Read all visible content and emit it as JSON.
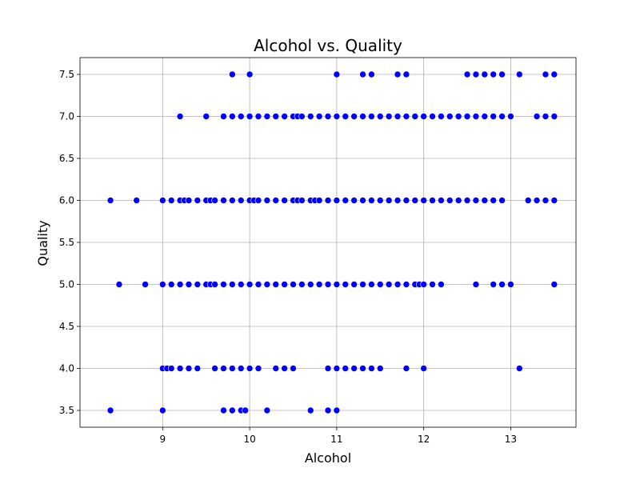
{
  "chart_data": {
    "type": "scatter",
    "title": "Alcohol vs. Quality",
    "xlabel": "Alcohol",
    "ylabel": "Quality",
    "xlim": [
      8.05,
      13.75
    ],
    "ylim": [
      3.3,
      7.7
    ],
    "xticks": [
      9,
      10,
      11,
      12,
      13
    ],
    "xtick_labels": [
      "9",
      "10",
      "11",
      "12",
      "13"
    ],
    "yticks": [
      3.5,
      4.0,
      4.5,
      5.0,
      5.5,
      6.0,
      6.5,
      7.0,
      7.5
    ],
    "ytick_labels": [
      "3.5",
      "4.0",
      "4.5",
      "5.0",
      "5.5",
      "6.0",
      "6.5",
      "7.0",
      "7.5"
    ],
    "grid": true,
    "marker_color": "#0000ff",
    "series": [
      {
        "points": [
          [
            9.8,
            7.5
          ],
          [
            10.0,
            7.5
          ],
          [
            11.0,
            7.5
          ],
          [
            11.3,
            7.5
          ],
          [
            11.4,
            7.5
          ],
          [
            11.7,
            7.5
          ],
          [
            11.8,
            7.5
          ],
          [
            12.5,
            7.5
          ],
          [
            12.6,
            7.5
          ],
          [
            12.7,
            7.5
          ],
          [
            12.8,
            7.5
          ],
          [
            12.9,
            7.5
          ],
          [
            13.1,
            7.5
          ],
          [
            13.4,
            7.5
          ],
          [
            13.5,
            7.5
          ],
          [
            9.2,
            7.0
          ],
          [
            9.5,
            7.0
          ],
          [
            9.7,
            7.0
          ],
          [
            9.8,
            7.0
          ],
          [
            9.9,
            7.0
          ],
          [
            10.0,
            7.0
          ],
          [
            10.1,
            7.0
          ],
          [
            10.2,
            7.0
          ],
          [
            10.3,
            7.0
          ],
          [
            10.4,
            7.0
          ],
          [
            10.5,
            7.0
          ],
          [
            10.55,
            7.0
          ],
          [
            10.6,
            7.0
          ],
          [
            10.7,
            7.0
          ],
          [
            10.8,
            7.0
          ],
          [
            10.9,
            7.0
          ],
          [
            11.0,
            7.0
          ],
          [
            11.1,
            7.0
          ],
          [
            11.2,
            7.0
          ],
          [
            11.3,
            7.0
          ],
          [
            11.4,
            7.0
          ],
          [
            11.5,
            7.0
          ],
          [
            11.6,
            7.0
          ],
          [
            11.7,
            7.0
          ],
          [
            11.8,
            7.0
          ],
          [
            11.9,
            7.0
          ],
          [
            12.0,
            7.0
          ],
          [
            12.1,
            7.0
          ],
          [
            12.2,
            7.0
          ],
          [
            12.3,
            7.0
          ],
          [
            12.4,
            7.0
          ],
          [
            12.5,
            7.0
          ],
          [
            12.6,
            7.0
          ],
          [
            12.7,
            7.0
          ],
          [
            12.8,
            7.0
          ],
          [
            12.9,
            7.0
          ],
          [
            13.0,
            7.0
          ],
          [
            13.3,
            7.0
          ],
          [
            13.4,
            7.0
          ],
          [
            13.5,
            7.0
          ],
          [
            8.4,
            6.0
          ],
          [
            8.7,
            6.0
          ],
          [
            9.0,
            6.0
          ],
          [
            9.1,
            6.0
          ],
          [
            9.2,
            6.0
          ],
          [
            9.25,
            6.0
          ],
          [
            9.3,
            6.0
          ],
          [
            9.4,
            6.0
          ],
          [
            9.5,
            6.0
          ],
          [
            9.55,
            6.0
          ],
          [
            9.6,
            6.0
          ],
          [
            9.7,
            6.0
          ],
          [
            9.8,
            6.0
          ],
          [
            9.9,
            6.0
          ],
          [
            10.0,
            6.0
          ],
          [
            10.05,
            6.0
          ],
          [
            10.1,
            6.0
          ],
          [
            10.2,
            6.0
          ],
          [
            10.3,
            6.0
          ],
          [
            10.4,
            6.0
          ],
          [
            10.5,
            6.0
          ],
          [
            10.55,
            6.0
          ],
          [
            10.6,
            6.0
          ],
          [
            10.7,
            6.0
          ],
          [
            10.75,
            6.0
          ],
          [
            10.8,
            6.0
          ],
          [
            10.9,
            6.0
          ],
          [
            11.0,
            6.0
          ],
          [
            11.1,
            6.0
          ],
          [
            11.2,
            6.0
          ],
          [
            11.3,
            6.0
          ],
          [
            11.4,
            6.0
          ],
          [
            11.5,
            6.0
          ],
          [
            11.6,
            6.0
          ],
          [
            11.7,
            6.0
          ],
          [
            11.8,
            6.0
          ],
          [
            11.9,
            6.0
          ],
          [
            12.0,
            6.0
          ],
          [
            12.1,
            6.0
          ],
          [
            12.2,
            6.0
          ],
          [
            12.3,
            6.0
          ],
          [
            12.4,
            6.0
          ],
          [
            12.5,
            6.0
          ],
          [
            12.6,
            6.0
          ],
          [
            12.7,
            6.0
          ],
          [
            12.8,
            6.0
          ],
          [
            12.9,
            6.0
          ],
          [
            13.2,
            6.0
          ],
          [
            13.3,
            6.0
          ],
          [
            13.4,
            6.0
          ],
          [
            13.5,
            6.0
          ],
          [
            8.5,
            5.0
          ],
          [
            8.8,
            5.0
          ],
          [
            9.0,
            5.0
          ],
          [
            9.1,
            5.0
          ],
          [
            9.2,
            5.0
          ],
          [
            9.3,
            5.0
          ],
          [
            9.4,
            5.0
          ],
          [
            9.5,
            5.0
          ],
          [
            9.55,
            5.0
          ],
          [
            9.6,
            5.0
          ],
          [
            9.7,
            5.0
          ],
          [
            9.8,
            5.0
          ],
          [
            9.9,
            5.0
          ],
          [
            10.0,
            5.0
          ],
          [
            10.1,
            5.0
          ],
          [
            10.2,
            5.0
          ],
          [
            10.3,
            5.0
          ],
          [
            10.4,
            5.0
          ],
          [
            10.5,
            5.0
          ],
          [
            10.6,
            5.0
          ],
          [
            10.7,
            5.0
          ],
          [
            10.8,
            5.0
          ],
          [
            10.9,
            5.0
          ],
          [
            11.0,
            5.0
          ],
          [
            11.1,
            5.0
          ],
          [
            11.2,
            5.0
          ],
          [
            11.3,
            5.0
          ],
          [
            11.4,
            5.0
          ],
          [
            11.5,
            5.0
          ],
          [
            11.6,
            5.0
          ],
          [
            11.7,
            5.0
          ],
          [
            11.8,
            5.0
          ],
          [
            11.9,
            5.0
          ],
          [
            11.95,
            5.0
          ],
          [
            12.0,
            5.0
          ],
          [
            12.1,
            5.0
          ],
          [
            12.2,
            5.0
          ],
          [
            12.6,
            5.0
          ],
          [
            12.8,
            5.0
          ],
          [
            12.9,
            5.0
          ],
          [
            13.0,
            5.0
          ],
          [
            13.5,
            5.0
          ],
          [
            9.0,
            4.0
          ],
          [
            9.05,
            4.0
          ],
          [
            9.1,
            4.0
          ],
          [
            9.2,
            4.0
          ],
          [
            9.3,
            4.0
          ],
          [
            9.4,
            4.0
          ],
          [
            9.6,
            4.0
          ],
          [
            9.7,
            4.0
          ],
          [
            9.8,
            4.0
          ],
          [
            9.9,
            4.0
          ],
          [
            10.0,
            4.0
          ],
          [
            10.1,
            4.0
          ],
          [
            10.3,
            4.0
          ],
          [
            10.4,
            4.0
          ],
          [
            10.5,
            4.0
          ],
          [
            10.9,
            4.0
          ],
          [
            11.0,
            4.0
          ],
          [
            11.1,
            4.0
          ],
          [
            11.2,
            4.0
          ],
          [
            11.3,
            4.0
          ],
          [
            11.4,
            4.0
          ],
          [
            11.5,
            4.0
          ],
          [
            11.8,
            4.0
          ],
          [
            12.0,
            4.0
          ],
          [
            13.1,
            4.0
          ],
          [
            8.4,
            3.5
          ],
          [
            9.0,
            3.5
          ],
          [
            9.7,
            3.5
          ],
          [
            9.8,
            3.5
          ],
          [
            9.9,
            3.5
          ],
          [
            9.95,
            3.5
          ],
          [
            10.2,
            3.5
          ],
          [
            10.7,
            3.5
          ],
          [
            10.9,
            3.5
          ],
          [
            11.0,
            3.5
          ]
        ]
      }
    ]
  }
}
